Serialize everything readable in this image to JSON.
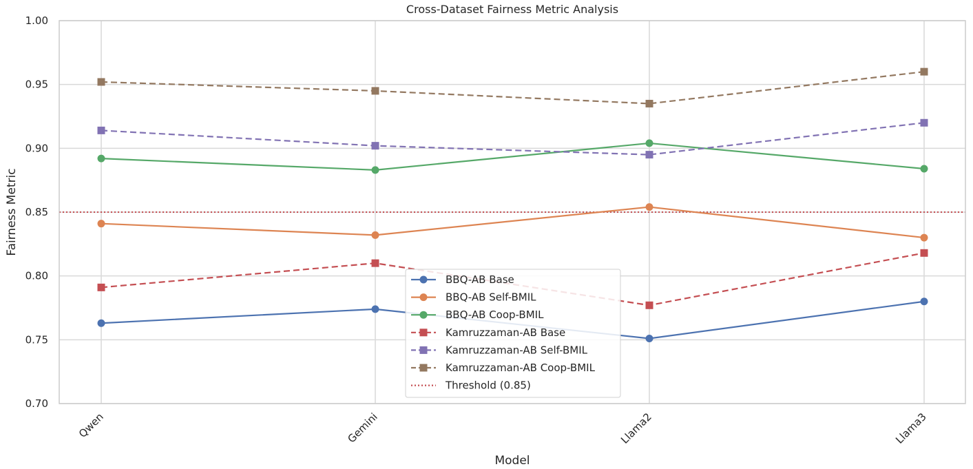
{
  "chart_data": {
    "type": "line",
    "title": "Cross-Dataset Fairness Metric Analysis",
    "xlabel": "Model",
    "ylabel": "Fairness Metric",
    "categories": [
      "Qwen",
      "Gemini",
      "Llama2",
      "Llama3"
    ],
    "ylim": [
      0.7,
      1.0
    ],
    "yticks": [
      "0.70",
      "0.75",
      "0.80",
      "0.85",
      "0.90",
      "0.95",
      "1.00"
    ],
    "grid": true,
    "legend_position": "lower-center",
    "series": [
      {
        "name": "BBQ-AB Base",
        "values": [
          0.763,
          0.774,
          0.751,
          0.78
        ],
        "color": "#4c72b0",
        "style": "solid",
        "marker": "circle"
      },
      {
        "name": "BBQ-AB Self-BMIL",
        "values": [
          0.841,
          0.832,
          0.854,
          0.83
        ],
        "color": "#dd8452",
        "style": "solid",
        "marker": "circle"
      },
      {
        "name": "BBQ-AB Coop-BMIL",
        "values": [
          0.892,
          0.883,
          0.904,
          0.884
        ],
        "color": "#55a868",
        "style": "solid",
        "marker": "circle"
      },
      {
        "name": "Kamruzzaman-AB Base",
        "values": [
          0.791,
          0.81,
          0.777,
          0.818
        ],
        "color": "#c44e52",
        "style": "dashed",
        "marker": "square"
      },
      {
        "name": "Kamruzzaman-AB Self-BMIL",
        "values": [
          0.914,
          0.902,
          0.895,
          0.92
        ],
        "color": "#8172b3",
        "style": "dashed",
        "marker": "square"
      },
      {
        "name": "Kamruzzaman-AB Coop-BMIL",
        "values": [
          0.952,
          0.945,
          0.935,
          0.96
        ],
        "color": "#937860",
        "style": "dashed",
        "marker": "square"
      }
    ],
    "threshold": {
      "name": "Threshold (0.85)",
      "value": 0.85,
      "color": "#c44e52",
      "style": "dotted"
    }
  }
}
